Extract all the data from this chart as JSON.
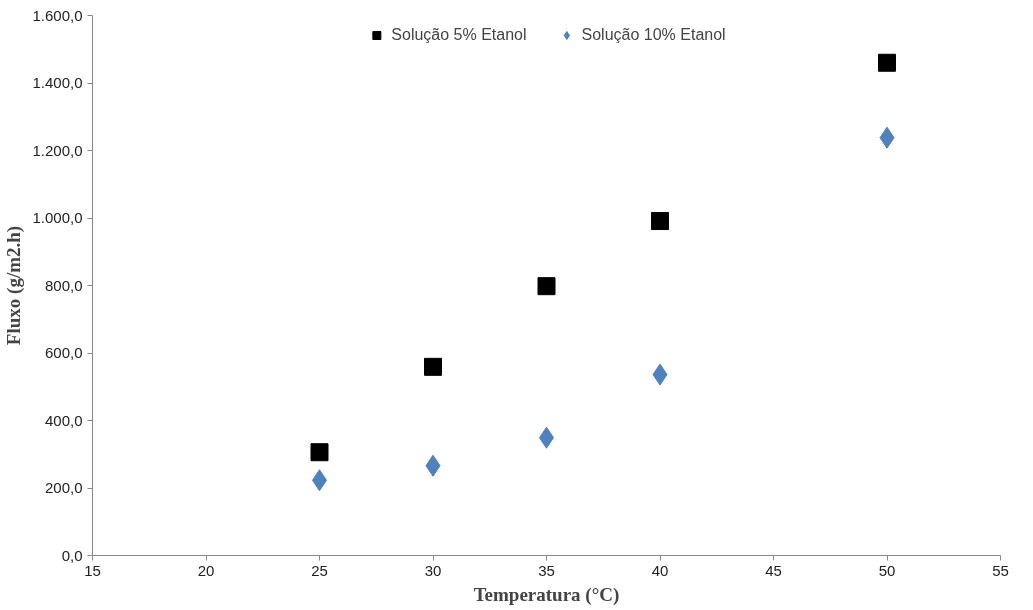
{
  "chart_data": {
    "type": "scatter",
    "xlabel": "Temperatura (°C)",
    "ylabel": "Fluxo (g/m2.h)",
    "x": [
      25,
      30,
      35,
      40,
      50
    ],
    "series": [
      {
        "name": "Solução 5% Etanol",
        "color": "#000000",
        "marker": "square",
        "values": [
          306,
          559,
          798,
          991,
          1460
        ]
      },
      {
        "name": "Solução 10% Etanol",
        "color": "#4f81bd",
        "marker": "diamond",
        "values": [
          223,
          266,
          349,
          536,
          1238
        ]
      }
    ],
    "xlim": [
      15,
      55
    ],
    "xticks": [
      15,
      20,
      25,
      30,
      35,
      40,
      45,
      50,
      55
    ],
    "ylim": [
      0,
      1600
    ],
    "yticks": [
      {
        "value": 0,
        "label": "0,0"
      },
      {
        "value": 200,
        "label": "200,0"
      },
      {
        "value": 400,
        "label": "400,0"
      },
      {
        "value": 600,
        "label": "600,0"
      },
      {
        "value": 800,
        "label": "800,0"
      },
      {
        "value": 1000,
        "label": "1.000,0"
      },
      {
        "value": 1200,
        "label": "1.200,0"
      },
      {
        "value": 1400,
        "label": "1.400,0"
      },
      {
        "value": 1600,
        "label": "1.600,0"
      }
    ],
    "grid": false,
    "legend": "top"
  }
}
